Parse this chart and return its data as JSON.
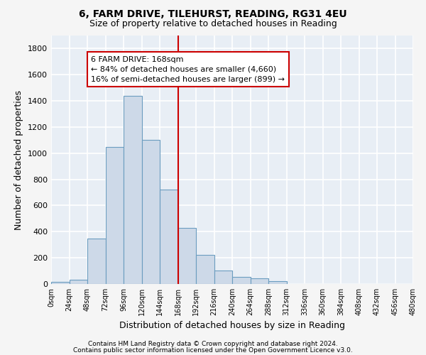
{
  "title1": "6, FARM DRIVE, TILEHURST, READING, RG31 4EU",
  "title2": "Size of property relative to detached houses in Reading",
  "xlabel": "Distribution of detached houses by size in Reading",
  "ylabel": "Number of detached properties",
  "bar_color": "#cdd9e8",
  "bar_edge_color": "#6b9dc0",
  "bin_edges": [
    0,
    24,
    48,
    72,
    96,
    120,
    144,
    168,
    192,
    216,
    240,
    264,
    288,
    312,
    336,
    360,
    384,
    408,
    432,
    456,
    480
  ],
  "bar_heights": [
    15,
    35,
    350,
    1050,
    1440,
    1100,
    720,
    430,
    220,
    105,
    55,
    45,
    20,
    0,
    0,
    0,
    0,
    0,
    0,
    0
  ],
  "property_size": 168,
  "red_line_color": "#cc0000",
  "annotation_line1": "6 FARM DRIVE: 168sqm",
  "annotation_line2": "← 84% of detached houses are smaller (4,660)",
  "annotation_line3": "16% of semi-detached houses are larger (899) →",
  "annotation_box_color": "#ffffff",
  "annotation_border_color": "#cc0000",
  "footnote1": "Contains HM Land Registry data © Crown copyright and database right 2024.",
  "footnote2": "Contains public sector information licensed under the Open Government Licence v3.0.",
  "ylim": [
    0,
    1900
  ],
  "yticks": [
    0,
    200,
    400,
    600,
    800,
    1000,
    1200,
    1400,
    1600,
    1800
  ],
  "background_color": "#e8eef5",
  "grid_color": "#ffffff",
  "title1_fontsize": 10,
  "title2_fontsize": 9,
  "tick_fontsize": 7,
  "label_fontsize": 9,
  "annotation_fontsize": 8
}
